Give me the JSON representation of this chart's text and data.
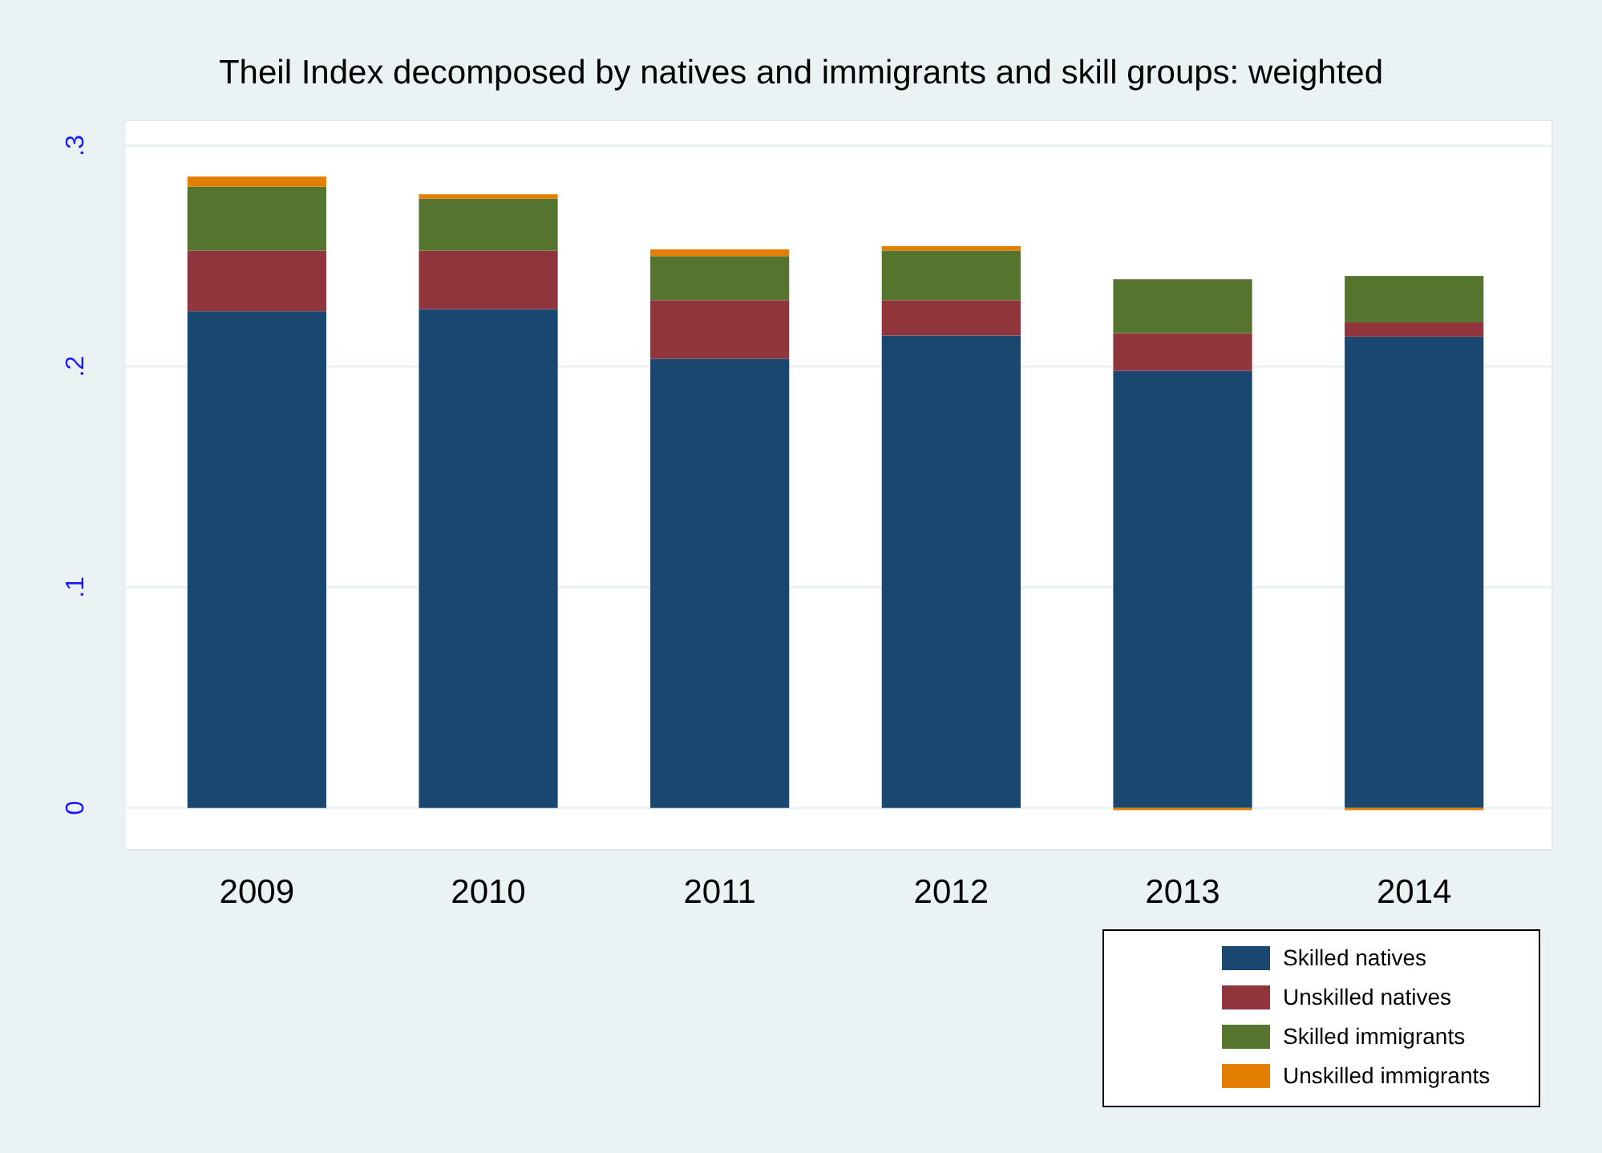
{
  "chart_data": {
    "type": "bar",
    "title": "Theil Index decomposed by natives and immigrants and skill groups: weighted",
    "categories": [
      "2009",
      "2010",
      "2011",
      "2012",
      "2013",
      "2014"
    ],
    "stacked": true,
    "ylim": [
      -0.019,
      0.3115
    ],
    "yticks": [
      {
        "value": 0,
        "label": "0"
      },
      {
        "value": 0.1,
        "label": ".1"
      },
      {
        "value": 0.2,
        "label": ".2"
      },
      {
        "value": 0.3,
        "label": ".3"
      }
    ],
    "grid": "y",
    "legend": "bottom right",
    "series": [
      {
        "name": "Skilled natives",
        "color": "#1a476f",
        "values": [
          0.225,
          0.226,
          0.2035,
          0.214,
          0.198,
          0.2135
        ]
      },
      {
        "name": "Unskilled natives",
        "color": "#90353b",
        "values": [
          0.0275,
          0.0265,
          0.0265,
          0.016,
          0.017,
          0.0065
        ]
      },
      {
        "name": "Skilled immigrants",
        "color": "#55752f",
        "values": [
          0.029,
          0.0235,
          0.02,
          0.0225,
          0.0245,
          0.021
        ]
      },
      {
        "name": "Unskilled immigrants",
        "color": "#e37e00",
        "values": [
          0.0045,
          0.002,
          0.003,
          0.002,
          -0.001,
          -0.001
        ]
      }
    ]
  }
}
